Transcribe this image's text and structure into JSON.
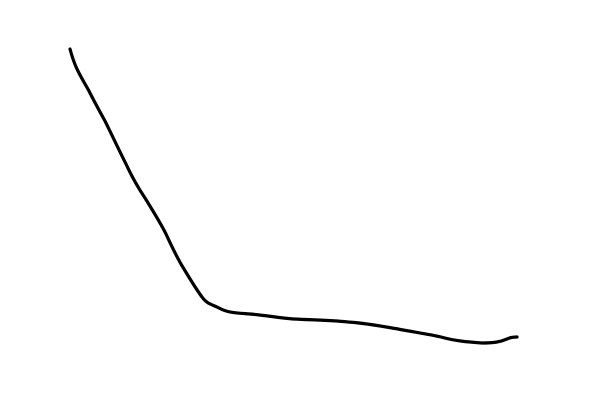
{
  "drawing": {
    "background_color": "#ffffff",
    "stroke_color": "#000000",
    "description_icon": "hand-drawn-curve-icon"
  }
}
